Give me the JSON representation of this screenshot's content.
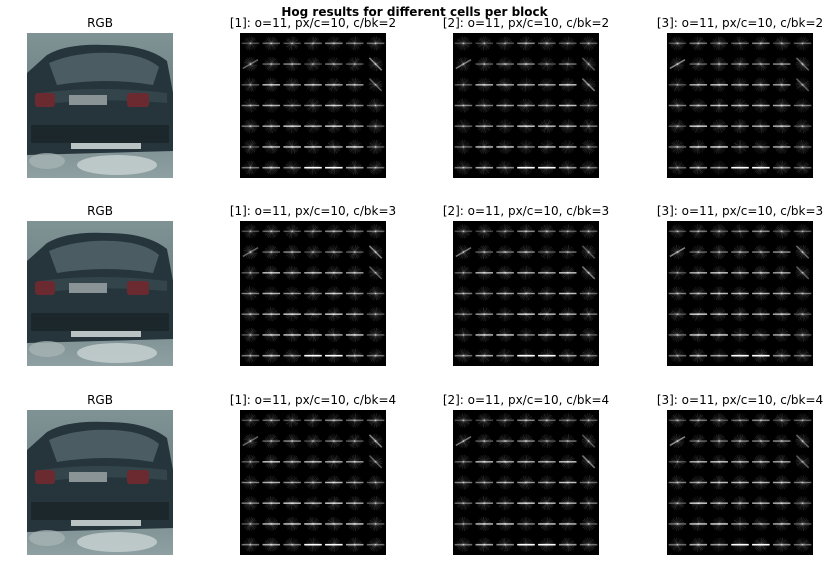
{
  "figure": {
    "suptitle": "Hog results for different cells per block"
  },
  "rows": [
    {
      "panels": [
        {
          "title": "RGB",
          "kind": "car"
        },
        {
          "title": "[1]: o=11, px/c=10, c/bk=2",
          "kind": "hog",
          "channel": 1
        },
        {
          "title": "[2]: o=11, px/c=10, c/bk=2",
          "kind": "hog",
          "channel": 2
        },
        {
          "title": "[3]: o=11, px/c=10, c/bk=2",
          "kind": "hog",
          "channel": 3
        }
      ]
    },
    {
      "panels": [
        {
          "title": "RGB",
          "kind": "car"
        },
        {
          "title": "[1]: o=11, px/c=10, c/bk=3",
          "kind": "hog",
          "channel": 1
        },
        {
          "title": "[2]: o=11, px/c=10, c/bk=3",
          "kind": "hog",
          "channel": 2
        },
        {
          "title": "[3]: o=11, px/c=10, c/bk=3",
          "kind": "hog",
          "channel": 3
        }
      ]
    },
    {
      "panels": [
        {
          "title": "RGB",
          "kind": "car"
        },
        {
          "title": "[1]: o=11, px/c=10, c/bk=4",
          "kind": "hog",
          "channel": 1
        },
        {
          "title": "[2]: o=11, px/c=10, c/bk=4",
          "kind": "hog",
          "channel": 2
        },
        {
          "title": "[3]: o=11, px/c=10, c/bk=4",
          "kind": "hog",
          "channel": 3
        }
      ]
    }
  ],
  "colors": {
    "background": "#ffffff",
    "hog_background": "#000000",
    "car_body": "#1e2a30",
    "road": "#8a9a9c"
  }
}
